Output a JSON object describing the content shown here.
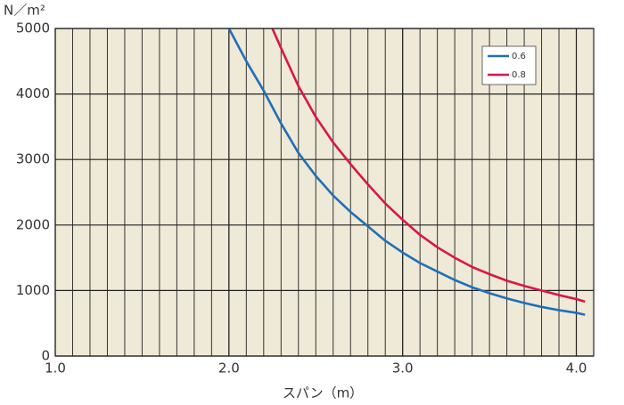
{
  "chart_data": {
    "type": "line",
    "y_label": "N／m²",
    "x_label": "スパン（m）",
    "xlim": [
      1.0,
      4.1
    ],
    "ylim": [
      0,
      5000
    ],
    "xticks": [
      {
        "value": 1.0,
        "label": "1.0"
      },
      {
        "value": 2.0,
        "label": "2.0"
      },
      {
        "value": 3.0,
        "label": "3.0"
      },
      {
        "value": 4.0,
        "label": "4.0"
      }
    ],
    "yticks": [
      0,
      1000,
      2000,
      3000,
      4000,
      5000
    ],
    "x_minor_grid_step": 0.1,
    "grid": true,
    "legend": "upper right",
    "series": [
      {
        "name": "0.6",
        "color": "#1f6fb8",
        "x": [
          2.0,
          2.1,
          2.2,
          2.3,
          2.4,
          2.5,
          2.6,
          2.7,
          2.8,
          2.9,
          3.0,
          3.1,
          3.2,
          3.3,
          3.4,
          3.5,
          3.6,
          3.7,
          3.8,
          3.9,
          4.0,
          4.05
        ],
        "values": [
          5000,
          4500,
          4050,
          3550,
          3100,
          2750,
          2450,
          2200,
          1980,
          1760,
          1580,
          1420,
          1290,
          1160,
          1050,
          960,
          880,
          810,
          750,
          700,
          660,
          630
        ]
      },
      {
        "name": "0.8",
        "color": "#d8174a",
        "x": [
          2.25,
          2.3,
          2.4,
          2.5,
          2.6,
          2.7,
          2.8,
          2.9,
          3.0,
          3.1,
          3.2,
          3.3,
          3.4,
          3.5,
          3.6,
          3.7,
          3.8,
          3.9,
          4.0,
          4.05
        ],
        "values": [
          5000,
          4700,
          4120,
          3650,
          3260,
          2930,
          2620,
          2330,
          2080,
          1850,
          1660,
          1500,
          1360,
          1250,
          1150,
          1070,
          1000,
          930,
          870,
          830
        ]
      }
    ]
  }
}
